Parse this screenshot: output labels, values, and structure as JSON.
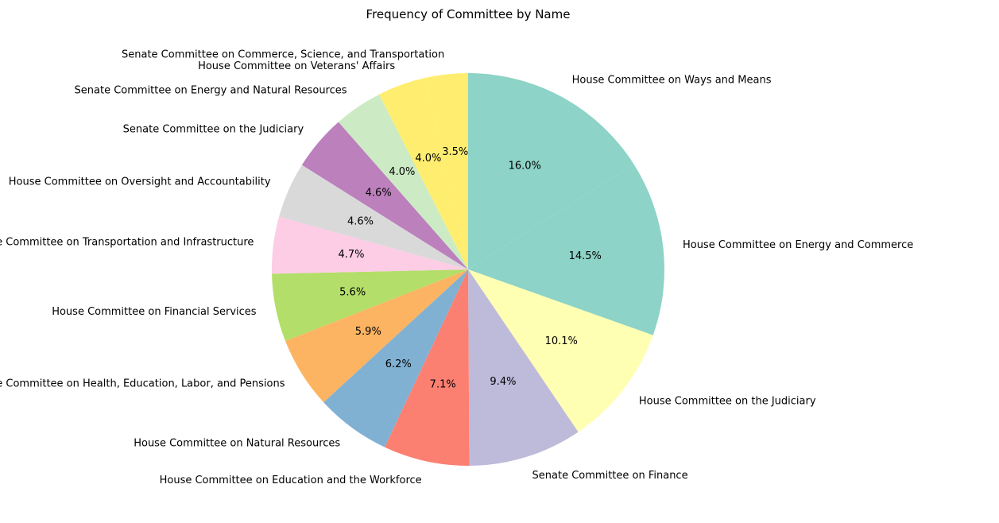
{
  "chart_data": {
    "type": "pie",
    "title": "Frequency of Committee by Name",
    "start_angle_deg": 90,
    "direction": "clockwise",
    "slices": [
      {
        "label": "House Committee on Ways and Means",
        "value": 16.0,
        "pct_label": "16.0%",
        "color": "#8dd3c7"
      },
      {
        "label": "House Committee on Energy and Commerce",
        "value": 14.5,
        "pct_label": "14.5%",
        "color": "#8dd3c7"
      },
      {
        "label": "House Committee on the Judiciary",
        "value": 10.1,
        "pct_label": "10.1%",
        "color": "#ffffb3"
      },
      {
        "label": "Senate Committee on Finance",
        "value": 9.4,
        "pct_label": "9.4%",
        "color": "#bebada"
      },
      {
        "label": "House Committee on Education and the Workforce",
        "value": 7.1,
        "pct_label": "7.1%",
        "color": "#fb8072"
      },
      {
        "label": "House Committee on Natural Resources",
        "value": 6.2,
        "pct_label": "6.2%",
        "color": "#80b1d3"
      },
      {
        "label": "Senate Committee on Health, Education, Labor, and Pensions",
        "value": 5.9,
        "pct_label": "5.9%",
        "color": "#fdb462"
      },
      {
        "label": "House Committee on Financial Services",
        "value": 5.6,
        "pct_label": "5.6%",
        "color": "#b3de69"
      },
      {
        "label": "House Committee on Transportation and Infrastructure",
        "value": 4.7,
        "pct_label": "4.7%",
        "color": "#fccde5"
      },
      {
        "label": "House Committee on Oversight and Accountability",
        "value": 4.6,
        "pct_label": "4.6%",
        "color": "#d9d9d9"
      },
      {
        "label": "Senate Committee on the Judiciary",
        "value": 4.6,
        "pct_label": "4.6%",
        "color": "#bc80bd"
      },
      {
        "label": "Senate Committee on Energy and Natural Resources",
        "value": 4.0,
        "pct_label": "4.0%",
        "color": "#ccebc5"
      },
      {
        "label": "House Committee on Veterans' Affairs",
        "value": 4.0,
        "pct_label": "4.0%",
        "color": "#ffed6f"
      },
      {
        "label": "Senate Committee on Commerce, Science, and Transportation",
        "value": 3.5,
        "pct_label": "3.5%",
        "color": "#ffed6f"
      }
    ]
  }
}
